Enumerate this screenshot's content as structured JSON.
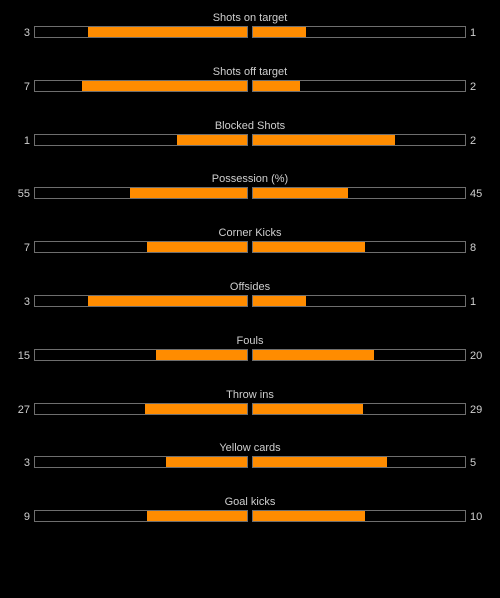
{
  "colors": {
    "background": "#000000",
    "bar_fill": "#ff8c00",
    "bar_border": "#6e6e6e",
    "text": "#cfcfcf"
  },
  "stats": [
    {
      "title": "Shots on target",
      "home": "3",
      "away": "1",
      "home_fill": 0.75,
      "away_fill": 0.25
    },
    {
      "title": "Shots off target",
      "home": "7",
      "away": "2",
      "home_fill": 0.78,
      "away_fill": 0.22
    },
    {
      "title": "Blocked Shots",
      "home": "1",
      "away": "2",
      "home_fill": 0.33,
      "away_fill": 0.67
    },
    {
      "title": "Possession (%)",
      "home": "55",
      "away": "45",
      "home_fill": 0.55,
      "away_fill": 0.45
    },
    {
      "title": "Corner Kicks",
      "home": "7",
      "away": "8",
      "home_fill": 0.47,
      "away_fill": 0.53
    },
    {
      "title": "Offsides",
      "home": "3",
      "away": "1",
      "home_fill": 0.75,
      "away_fill": 0.25
    },
    {
      "title": "Fouls",
      "home": "15",
      "away": "20",
      "home_fill": 0.43,
      "away_fill": 0.57
    },
    {
      "title": "Throw ins",
      "home": "27",
      "away": "29",
      "home_fill": 0.48,
      "away_fill": 0.52
    },
    {
      "title": "Yellow cards",
      "home": "3",
      "away": "5",
      "home_fill": 0.38,
      "away_fill": 0.63
    },
    {
      "title": "Goal kicks",
      "home": "9",
      "away": "10",
      "home_fill": 0.47,
      "away_fill": 0.53
    }
  ]
}
